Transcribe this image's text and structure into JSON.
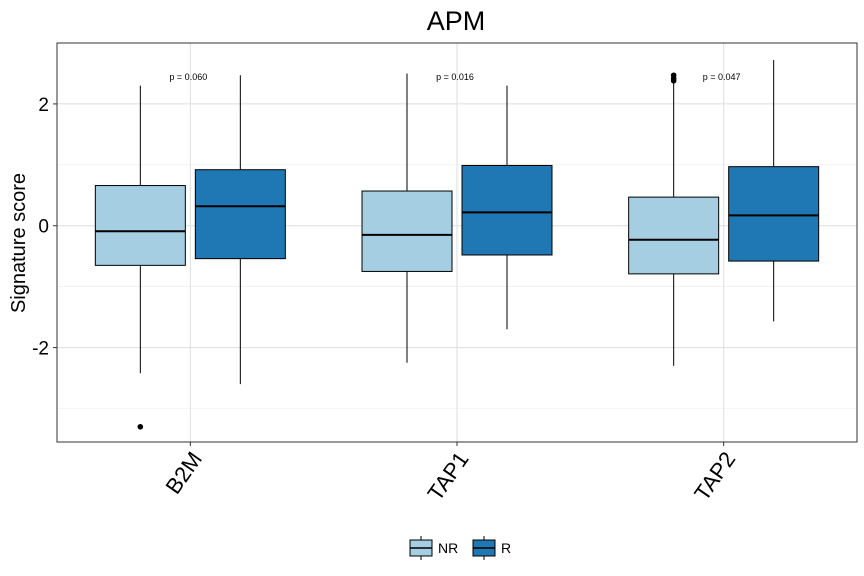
{
  "chart_data": {
    "type": "box",
    "title": "APM",
    "xlabel": "",
    "ylabel": "Signature score",
    "ylim": [
      -3.55,
      3.0
    ],
    "yticks": [
      -2,
      0,
      2
    ],
    "yticks_text": [
      "-2",
      "0",
      "2"
    ],
    "grid": true,
    "legend_position": "bottom",
    "categories": [
      "B2M",
      "TAP1",
      "TAP2"
    ],
    "series": [
      {
        "name": "NR",
        "color": "#A6CEE3",
        "boxes": [
          {
            "whisker_low": -2.42,
            "q1": -0.65,
            "median": -0.09,
            "q3": 0.66,
            "whisker_high": 2.3,
            "outliers": [
              -3.3
            ]
          },
          {
            "whisker_low": -2.25,
            "q1": -0.75,
            "median": -0.15,
            "q3": 0.57,
            "whisker_high": 2.5,
            "outliers": []
          },
          {
            "whisker_low": -2.3,
            "q1": -0.79,
            "median": -0.23,
            "q3": 0.47,
            "whisker_high": 2.35,
            "outliers": [
              2.38,
              2.42,
              2.47
            ]
          }
        ]
      },
      {
        "name": "R",
        "color": "#1F78B4",
        "boxes": [
          {
            "whisker_low": -2.6,
            "q1": -0.54,
            "median": 0.32,
            "q3": 0.92,
            "whisker_high": 2.47,
            "outliers": []
          },
          {
            "whisker_low": -1.7,
            "q1": -0.48,
            "median": 0.22,
            "q3": 0.99,
            "whisker_high": 2.3,
            "outliers": []
          },
          {
            "whisker_low": -1.57,
            "q1": -0.58,
            "median": 0.17,
            "q3": 0.97,
            "whisker_high": 2.72,
            "outliers": []
          }
        ]
      }
    ],
    "annotations": [
      "p = 0.060",
      "p = 0.016",
      "p = 0.047"
    ],
    "legend": [
      "NR",
      "R"
    ]
  }
}
